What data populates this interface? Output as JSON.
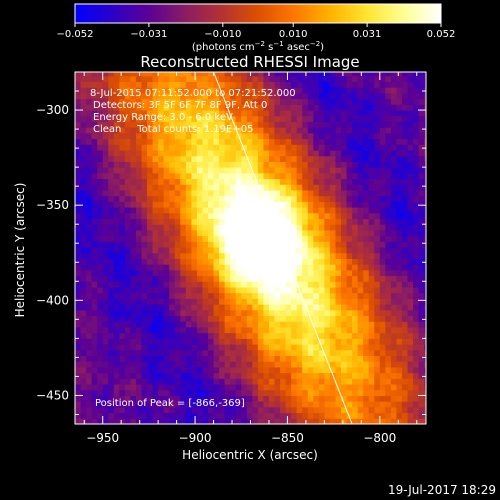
{
  "chart_data": {
    "type": "heatmap",
    "title": "Reconstructed RHESSI Image",
    "xlabel": "Heliocentric X (arcsec)",
    "ylabel": "Heliocentric Y (arcsec)",
    "xlim": [
      -965,
      -775
    ],
    "ylim": [
      -465,
      -280
    ],
    "x_ticks": [
      -950,
      -900,
      -850,
      -800
    ],
    "y_ticks": [
      -300,
      -350,
      -400,
      -450
    ],
    "x_tick_labels": [
      "−950",
      "−900",
      "−850",
      "−800"
    ],
    "y_tick_labels": [
      "−300",
      "−350",
      "−400",
      "−450"
    ],
    "colorbar": {
      "range": [
        -0.052,
        0.052
      ],
      "ticks": [
        -0.052,
        -0.031,
        -0.01,
        0.01,
        0.031,
        0.052
      ],
      "tick_labels": [
        "−0.052",
        "−0.031",
        "−0.010",
        "0.010",
        "0.031",
        "0.052"
      ],
      "label_main": "(photons cm",
      "label_exp1": "−2",
      "label_mid": " s",
      "label_exp2": "−1",
      "label_mid2": " asec",
      "label_exp3": "−2",
      "label_end": ")",
      "colors": [
        "#0000ff",
        "#2a00c8",
        "#5a0096",
        "#8a1c64",
        "#b43232",
        "#dc5000",
        "#ff7800",
        "#ffb400",
        "#ffe632",
        "#ffff96",
        "#ffffff"
      ]
    },
    "peak": [
      -866,
      -369
    ],
    "limb_line": [
      [
        -890,
        -280
      ],
      [
        -815,
        -465
      ]
    ],
    "annotations": {
      "time_range": "8-Jul-2015 07:11:52.000 to 07:21:52.000",
      "detectors": "Detectors: 3F 5F 6F 7F 8F 9F, Att 0",
      "energy": "Energy Range: 3.0 - 6.0 keV",
      "clean": "Clean     Total counts: 1.19E+05",
      "peak_label": "Position of Peak = [-866,-369]"
    }
  },
  "footer": {
    "timestamp": "19-Jul-2017 18:29"
  }
}
